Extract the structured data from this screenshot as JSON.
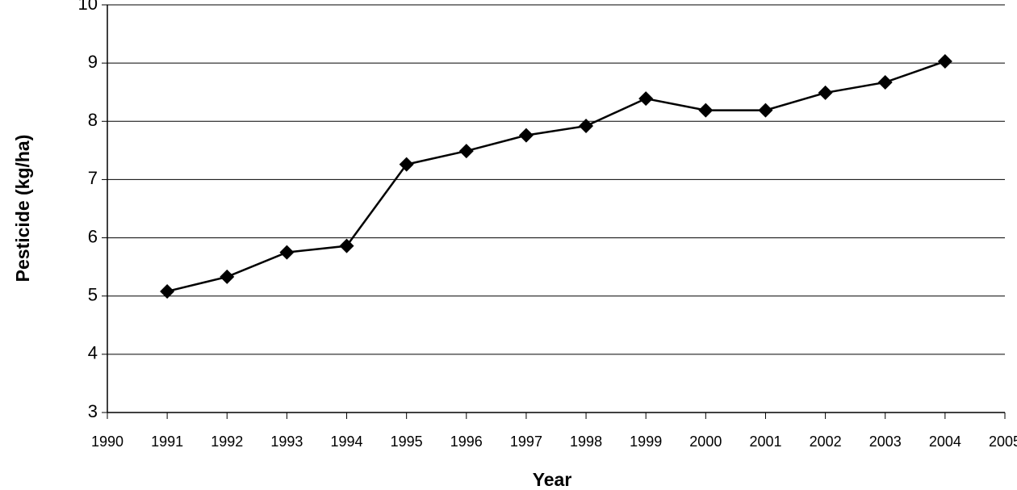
{
  "chart_data": {
    "type": "line",
    "x": [
      1991,
      1992,
      1993,
      1994,
      1995,
      1996,
      1997,
      1998,
      1999,
      2000,
      2001,
      2002,
      2003,
      2004
    ],
    "values": [
      5.08,
      5.33,
      5.75,
      5.86,
      7.26,
      7.49,
      7.76,
      7.92,
      8.39,
      8.19,
      8.19,
      8.49,
      8.67,
      9.03
    ],
    "color": "#000000",
    "xlim": [
      1990,
      2005
    ],
    "xticks": [
      1990,
      1991,
      1992,
      1993,
      1994,
      1995,
      1996,
      1997,
      1998,
      1999,
      2000,
      2001,
      2002,
      2003,
      2004,
      2005
    ],
    "ylim": [
      3,
      10
    ],
    "yticks": [
      3,
      4,
      5,
      6,
      7,
      8,
      9,
      10
    ],
    "grid": true,
    "x_label": "Year",
    "y_label": "Pesticide (kg/ha)"
  }
}
